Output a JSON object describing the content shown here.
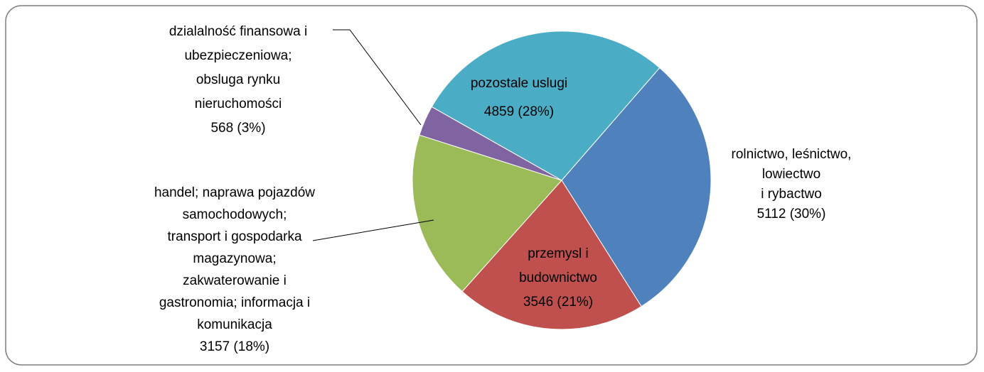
{
  "chart_data": {
    "type": "pie",
    "categories": [
      [
        "rolnictwo, leśnictwo,",
        "lowiectwo",
        "i rybactwo"
      ],
      [
        "przemysl i",
        "budownictwo"
      ],
      [
        "handel; naprawa pojazdów",
        "samochodowych;",
        "transport i gospodarka",
        "magazynowa;",
        "zakwaterowanie i",
        "gastronomia; informacja i",
        "komunikacja"
      ],
      [
        "dzialalność finansowa i",
        "ubezpieczeniowa;",
        "obsluga rynku",
        "nieruchomości"
      ],
      [
        "pozostale uslugi"
      ]
    ],
    "values": [
      5112,
      3546,
      3157,
      568,
      4859
    ],
    "value_labels": [
      "5112 (30%)",
      "3546 (21%)",
      "3157 (18%)",
      "568 (3%)",
      "4859 (28%)"
    ],
    "colors": [
      "#4f81bd",
      "#c0504d",
      "#9bbb59",
      "#8064a2",
      "#4bacc6"
    ]
  }
}
